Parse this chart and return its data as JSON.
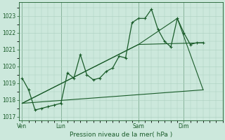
{
  "background_color": "#cce8dc",
  "grid_color": "#aacfbf",
  "line_color": "#1a5c2a",
  "title": "Pression niveau de la mer( hPa )",
  "ylim": [
    1016.8,
    1023.8
  ],
  "yticks": [
    1017,
    1018,
    1019,
    1020,
    1021,
    1022,
    1023
  ],
  "day_labels": [
    "Ven",
    "Lun",
    "Sam",
    "Dim"
  ],
  "day_positions": [
    0,
    6,
    18,
    25
  ],
  "xlim": [
    -0.5,
    31
  ],
  "line1_x": [
    0,
    1,
    2,
    3,
    4,
    5,
    6,
    7,
    8,
    9,
    10,
    11,
    12,
    13,
    14,
    15,
    16,
    17,
    18,
    19,
    20,
    21,
    22,
    23,
    24,
    25,
    26,
    27,
    28
  ],
  "line1_y": [
    1019.3,
    1018.6,
    1017.4,
    1017.5,
    1017.6,
    1017.7,
    1017.8,
    1019.6,
    1019.3,
    1020.7,
    1019.5,
    1019.2,
    1019.3,
    1019.7,
    1019.9,
    1020.6,
    1020.5,
    1022.6,
    1022.85,
    1022.85,
    1023.4,
    1022.2,
    1021.5,
    1021.15,
    1022.85,
    1022.0,
    1021.3,
    1021.4,
    1021.4
  ],
  "line2_x": [
    0,
    18,
    28
  ],
  "line2_y": [
    1017.8,
    1021.3,
    1021.4
  ],
  "line3_x": [
    0,
    18,
    24,
    28
  ],
  "line3_y": [
    1017.8,
    1021.3,
    1022.85,
    1018.6
  ],
  "line4_x": [
    0,
    28
  ],
  "line4_y": [
    1017.8,
    1018.6
  ],
  "xtick_minor_step": 1,
  "ytick_minor_step": 0.5
}
